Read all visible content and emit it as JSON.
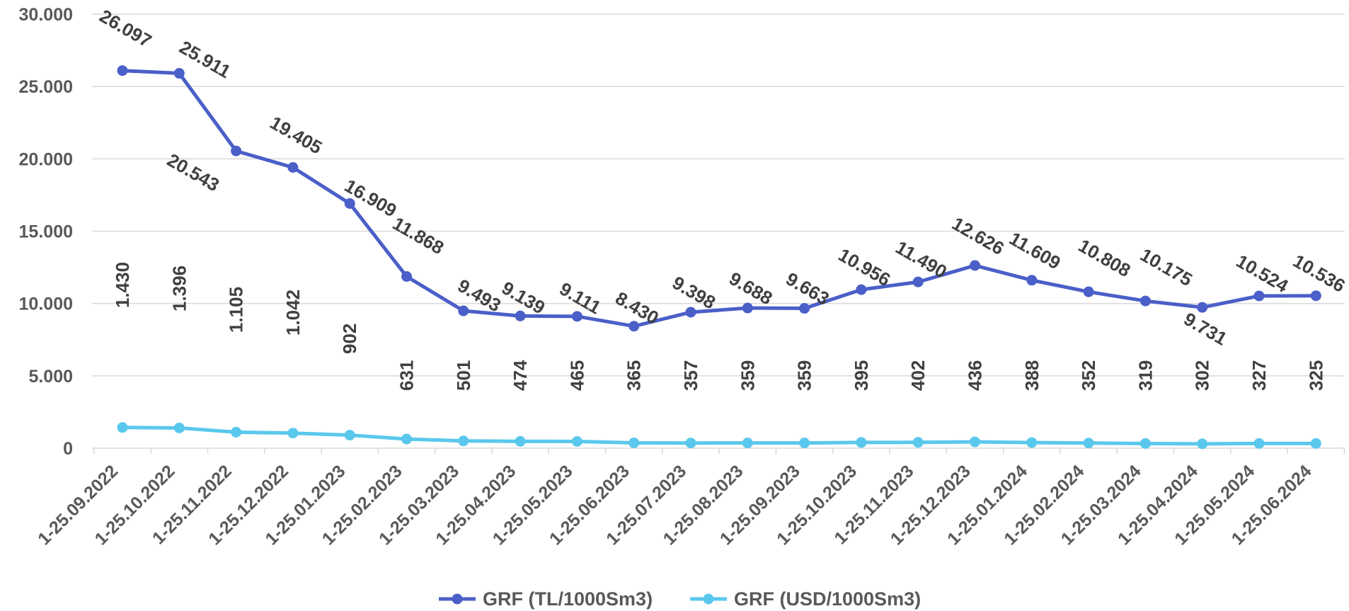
{
  "chart_data": {
    "type": "line",
    "title": "",
    "xlabel": "",
    "ylabel": "",
    "ylim": [
      0,
      30000
    ],
    "y_ticks": [
      0,
      5000,
      10000,
      15000,
      20000,
      25000,
      30000
    ],
    "y_tick_labels": [
      "0",
      "5.000",
      "10.000",
      "15.000",
      "20.000",
      "25.000",
      "30.000"
    ],
    "grid": true,
    "legend_position": "bottom",
    "categories": [
      "1-25.09.2022",
      "1-25.10.2022",
      "1-25.11.2022",
      "1-25.12.2022",
      "1-25.01.2023",
      "1-25.02.2023",
      "1-25.03.2023",
      "1-25.04.2023",
      "1-25.05.2023",
      "1-25.06.2023",
      "1-25.07.2023",
      "1-25.08.2023",
      "1-25.09.2023",
      "1-25.10.2023",
      "1-25.11.2023",
      "1-25.12.2023",
      "1-25.01.2024",
      "1-25.02.2024",
      "1-25.03.2024",
      "1-25.04.2024",
      "1-25.05.2024",
      "1-25.06.2024"
    ],
    "series": [
      {
        "name": "GRF (TL/1000Sm3)",
        "color": "#4a5fc8",
        "values": [
          26097,
          25911,
          20543,
          19405,
          16909,
          11868,
          9493,
          9139,
          9111,
          8430,
          9398,
          9688,
          9663,
          10956,
          11490,
          12626,
          11609,
          10808,
          10175,
          9731,
          10524,
          10536
        ],
        "labels": [
          "26.097",
          "25.911",
          "20.543",
          "19.405",
          "16.909",
          "11.868",
          "9.493",
          "9.139",
          "9.111",
          "8.430",
          "9.398",
          "9.688",
          "9.663",
          "10.956",
          "11.490",
          "12.626",
          "11.609",
          "10.808",
          "10.175",
          "9.731",
          "10.524",
          "10.536"
        ]
      },
      {
        "name": "GRF (USD/1000Sm3)",
        "color": "#5ac8ec",
        "values": [
          1430,
          1396,
          1105,
          1042,
          902,
          631,
          501,
          474,
          465,
          365,
          357,
          359,
          359,
          395,
          402,
          436,
          388,
          352,
          319,
          302,
          327,
          325
        ],
        "labels": [
          "1.430",
          "1.396",
          "1.105",
          "1.042",
          "902",
          "631",
          "501",
          "474",
          "465",
          "365",
          "357",
          "359",
          "359",
          "395",
          "402",
          "436",
          "388",
          "352",
          "319",
          "302",
          "327",
          "325"
        ]
      }
    ]
  }
}
